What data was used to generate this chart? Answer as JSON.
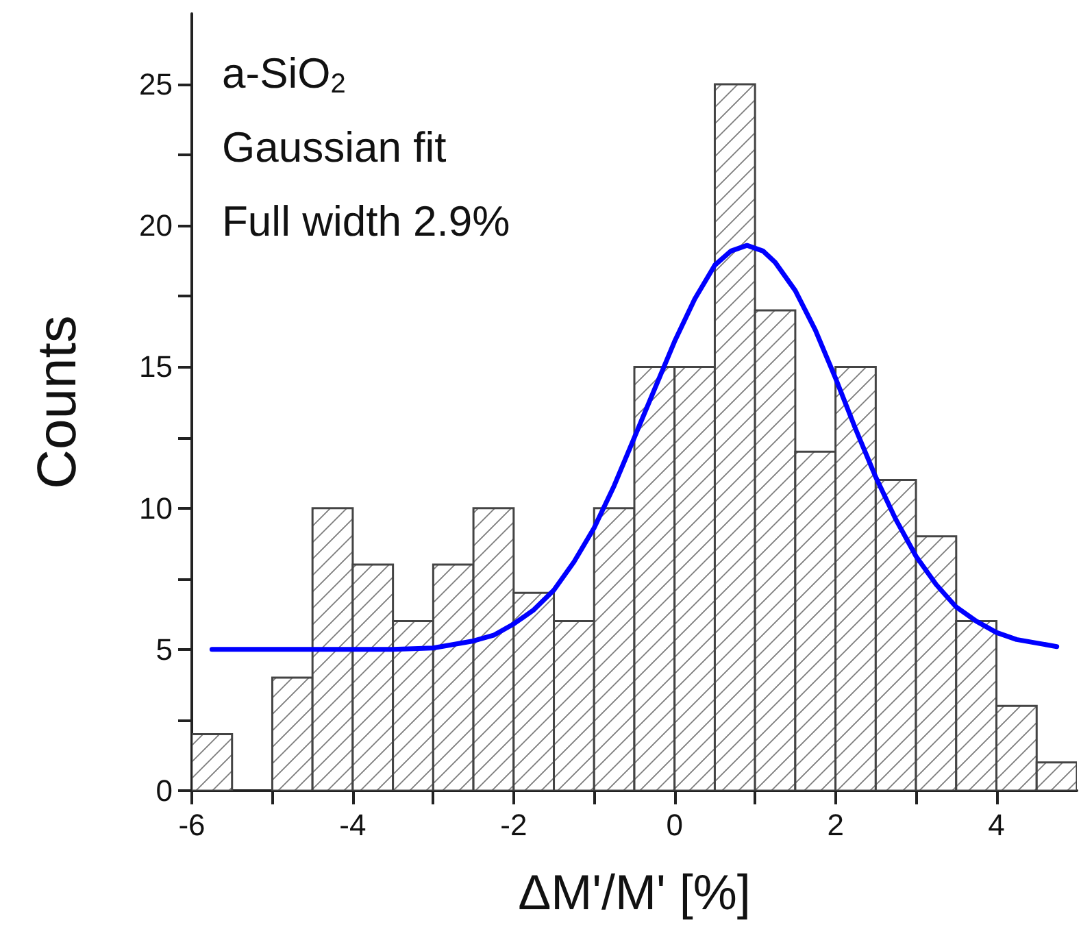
{
  "chart_data": {
    "type": "histogram",
    "xlabel": "ΔM'/M' [%]",
    "ylabel": "Counts",
    "annotations": [
      "a-SiO$_{2}$",
      "Gaussian fit",
      "Full width 2.9%"
    ],
    "bins": [
      -6,
      -5.5,
      -5,
      -4.5,
      -4,
      -3.5,
      -3,
      -2.5,
      -2,
      -1.5,
      -1,
      -0.5,
      0,
      0.5,
      1,
      1.5,
      2,
      2.5,
      3,
      3.5,
      4,
      4.5,
      5
    ],
    "values": [
      2,
      0,
      4,
      10,
      8,
      6,
      8,
      10,
      7,
      6,
      10,
      15,
      15,
      25,
      17,
      12,
      15,
      11,
      9,
      6,
      3,
      1
    ],
    "color": "#444444",
    "series": [
      {
        "type": "line",
        "color": "#0000ff",
        "marker": "none",
        "line_style": "solid",
        "x": [
          -5.75,
          -4,
          -3.5,
          -3,
          -2.5,
          -2.25,
          -2,
          -1.75,
          -1.5,
          -1.25,
          -1,
          -0.75,
          -0.5,
          -0.25,
          0,
          0.25,
          0.5,
          0.7,
          0.9,
          1.1,
          1.25,
          1.5,
          1.75,
          2,
          2.25,
          2.5,
          2.75,
          3,
          3.25,
          3.5,
          3.75,
          4,
          4.25,
          4.75
        ],
        "values": [
          5,
          5,
          5,
          5.05,
          5.3,
          5.5,
          5.9,
          6.4,
          7.1,
          8.1,
          9.3,
          10.8,
          12.5,
          14.2,
          15.9,
          17.4,
          18.6,
          19.1,
          19.3,
          19.1,
          18.7,
          17.7,
          16.3,
          14.6,
          12.8,
          11.1,
          9.6,
          8.3,
          7.3,
          6.5,
          6,
          5.6,
          5.35,
          5.1
        ]
      }
    ],
    "xlim": [
      -6,
      5
    ],
    "xticks": [
      -6,
      -4,
      -2,
      0,
      2,
      4
    ],
    "ylim": [
      0,
      27.5
    ],
    "yticks": [
      0,
      5,
      10,
      15,
      20,
      25
    ],
    "grid": false
  }
}
